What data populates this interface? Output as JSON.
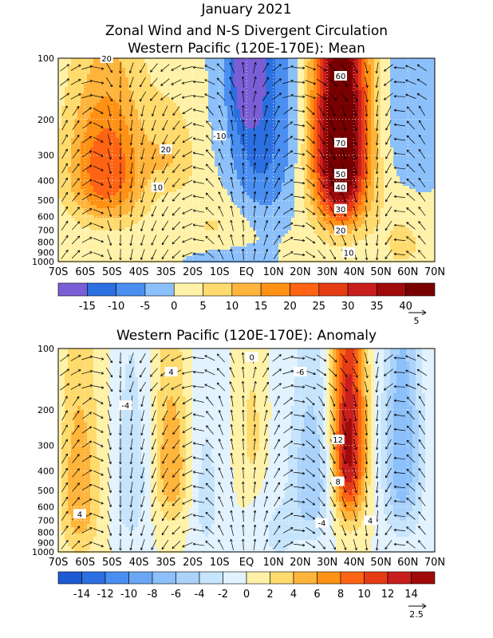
{
  "page": {
    "title_line1": "January 2021",
    "title_line2": "Zonal Wind and N-S Divergent Circulation",
    "title_line3": "Western Pacific (120E-170E): Mean",
    "title_panel2": "Western Pacific (120E-170E): Anomaly"
  },
  "chart_data": [
    {
      "type": "heatmap",
      "title": "Western Pacific (120E-170E): Mean",
      "x_ticks": [
        "70S",
        "60S",
        "50S",
        "40S",
        "30S",
        "20S",
        "10S",
        "EQ",
        "10N",
        "20N",
        "30N",
        "40N",
        "50N",
        "60N",
        "70N"
      ],
      "y_ticks": [
        "100",
        "200",
        "300",
        "400",
        "500",
        "600",
        "700",
        "800",
        "900",
        "1000"
      ],
      "xlim": [
        -70,
        70
      ],
      "ylim": [
        1000,
        100
      ],
      "colorbar": {
        "labels": [
          "-15",
          "-10",
          "-5",
          "0",
          "5",
          "10",
          "15",
          "20",
          "25",
          "30",
          "35",
          "40"
        ],
        "levels": [
          -20,
          -15,
          -10,
          -5,
          0,
          5,
          10,
          15,
          20,
          25,
          30,
          35,
          40,
          45
        ],
        "colors": [
          "#7a5ed6",
          "#2c6fe0",
          "#4a8ff0",
          "#8cc0fa",
          "#fff2a8",
          "#ffdb6e",
          "#ffb43c",
          "#ff9114",
          "#ff6414",
          "#e63c14",
          "#c81e1e",
          "#a00a0a",
          "#780000"
        ]
      },
      "contour_labels": [
        "20",
        "20",
        "10",
        "-10",
        "60",
        "70",
        "50",
        "40",
        "30",
        "20",
        "10"
      ],
      "vector_reference": "5"
    },
    {
      "type": "heatmap",
      "title": "Western Pacific (120E-170E): Anomaly",
      "x_ticks": [
        "70S",
        "60S",
        "50S",
        "40S",
        "30S",
        "20S",
        "10S",
        "EQ",
        "10N",
        "20N",
        "30N",
        "40N",
        "50N",
        "60N",
        "70N"
      ],
      "y_ticks": [
        "100",
        "200",
        "300",
        "400",
        "500",
        "600",
        "700",
        "800",
        "900",
        "1000"
      ],
      "xlim": [
        -70,
        70
      ],
      "ylim": [
        1000,
        100
      ],
      "colorbar": {
        "labels": [
          "-14",
          "-12",
          "-10",
          "-8",
          "-6",
          "-4",
          "-2",
          "0",
          "2",
          "4",
          "6",
          "8",
          "10",
          "12",
          "14"
        ],
        "levels": [
          -16,
          -14,
          -12,
          -10,
          -8,
          -6,
          -4,
          -2,
          0,
          2,
          4,
          6,
          8,
          10,
          12,
          14,
          16
        ],
        "colors": [
          "#1e5ad2",
          "#2c6fe0",
          "#4a8ff0",
          "#6aa8f5",
          "#8cc0fa",
          "#aad2fa",
          "#c6e4fc",
          "#e2f2fe",
          "#fff2a8",
          "#ffdb6e",
          "#ffb43c",
          "#ff9114",
          "#ff6414",
          "#e63c14",
          "#c81e1e",
          "#a00a0a"
        ]
      },
      "contour_labels": [
        "4",
        "-4",
        "4",
        "0",
        "-6",
        "12",
        "8",
        "4",
        "-4"
      ],
      "vector_reference": "2.5"
    }
  ]
}
